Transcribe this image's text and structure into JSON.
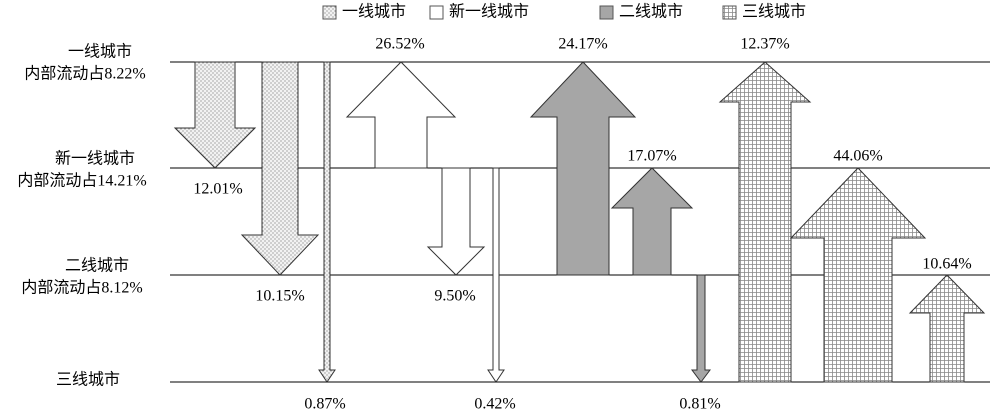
{
  "legend": [
    "一线城市",
    "新一线城市",
    "二线城市",
    "三线城市"
  ],
  "rows": [
    {
      "name": "一线城市",
      "note": "内部流动占8.22%"
    },
    {
      "name": "新一线城市",
      "note": "内部流动占14.21%"
    },
    {
      "name": "二线城市",
      "note": "内部流动占8.12%"
    },
    {
      "name": "三线城市"
    }
  ],
  "arrows": [
    {
      "label": "12.01%"
    },
    {
      "label": "10.15%"
    },
    {
      "label": "0.87%"
    },
    {
      "label": "26.52%"
    },
    {
      "label": "9.50%"
    },
    {
      "label": "0.42%"
    },
    {
      "label": "24.17%"
    },
    {
      "label": "17.07%"
    },
    {
      "label": "0.81%"
    },
    {
      "label": "12.37%"
    },
    {
      "label": "44.06%"
    },
    {
      "label": "10.64%"
    }
  ]
}
